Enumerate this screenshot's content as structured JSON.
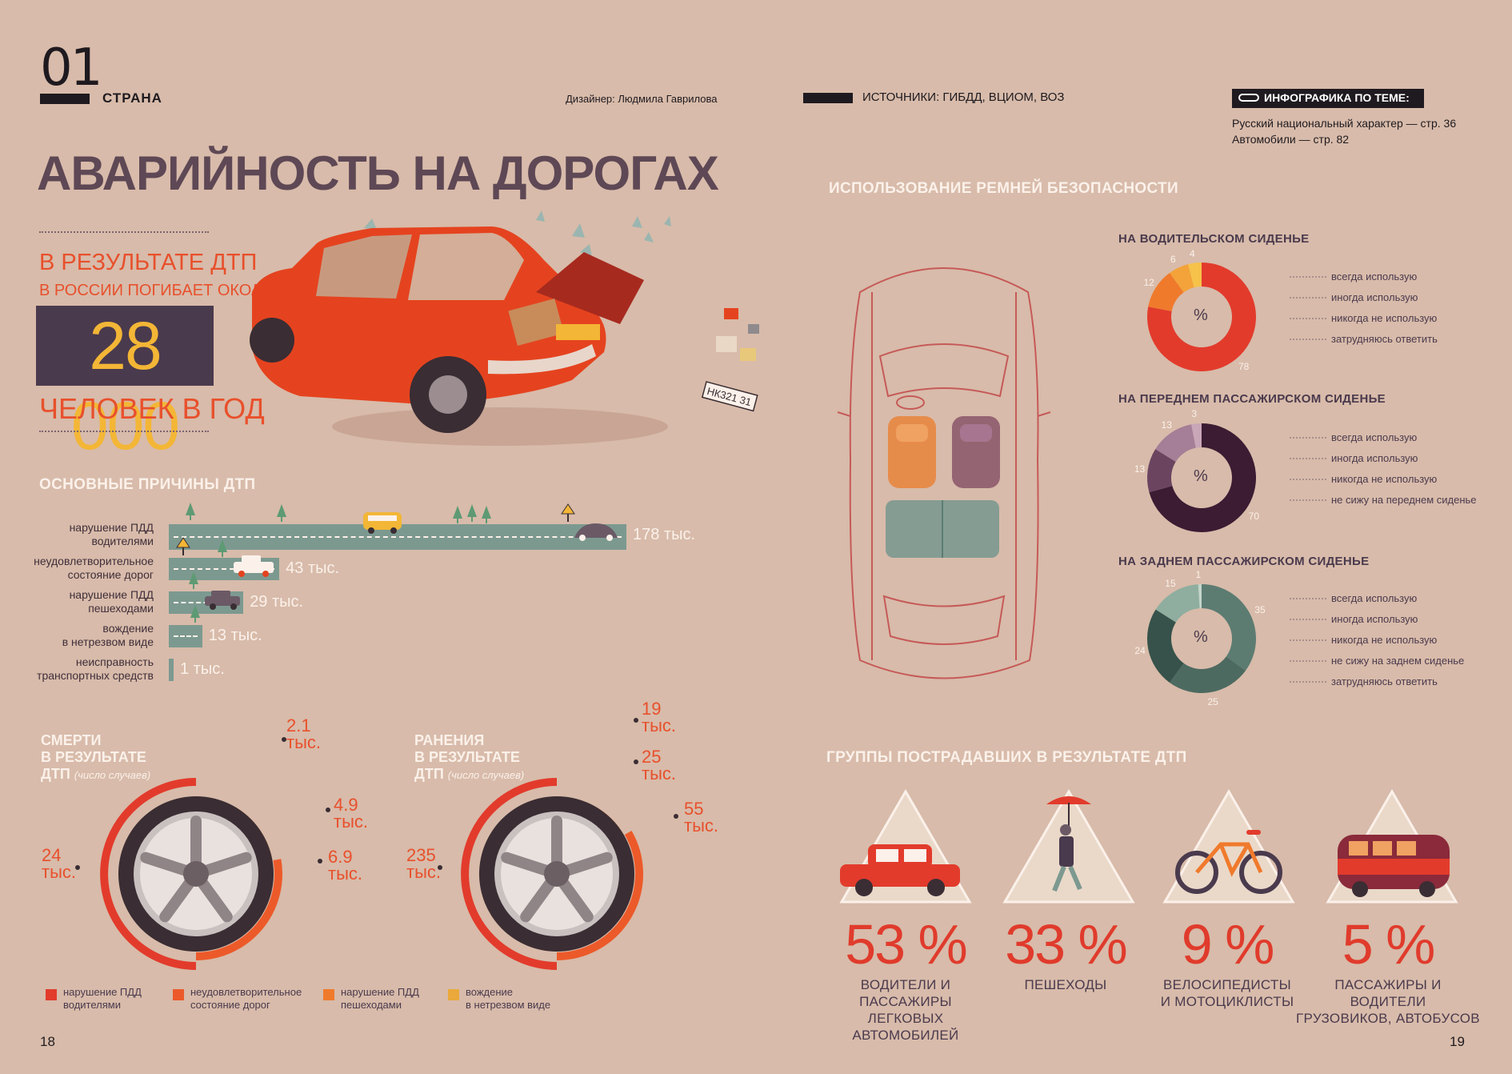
{
  "header": {
    "issue_number": "01",
    "section": "СТРАНА",
    "designer": "Дизайнер: Людмила Гаврилова",
    "sources": "ИСТОЧНИКИ: ГИБДД, ВЦИОМ, ВОЗ",
    "related_title": "ИНФОГРАФИКА ПО ТЕМЕ:",
    "related_items": [
      "Русский национальный характер — стр. 36",
      "Автомобили — стр. 82"
    ]
  },
  "title": "АВАРИЙНОСТЬ НА ДОРОГАХ",
  "headline_stat": {
    "line1": "В РЕЗУЛЬТАТЕ ДТП",
    "line2": "В РОССИИ ПОГИБАЕТ ОКОЛО",
    "number": "28 000",
    "line3": "ЧЕЛОВЕК В ГОД"
  },
  "plate_text": "НК321 31",
  "causes": {
    "title": "ОСНОВНЫЕ ПРИЧИНЫ ДТП",
    "items": [
      {
        "label1": "нарушение ПДД",
        "label2": "водителями",
        "value": 178,
        "value_label": "178 тыс."
      },
      {
        "label1": "неудовлетворительное",
        "label2": "состояние дорог",
        "value": 43,
        "value_label": "43 тыс."
      },
      {
        "label1": "нарушение ПДД",
        "label2": "пешеходами",
        "value": 29,
        "value_label": "29 тыс."
      },
      {
        "label1": "вождение",
        "label2": "в нетрезвом виде",
        "value": 13,
        "value_label": "13 тыс."
      },
      {
        "label1": "неисправность",
        "label2": "транспортных средств",
        "value": 1,
        "value_label": "1 тыс."
      }
    ]
  },
  "deaths": {
    "title_lines": [
      "СМЕРТИ",
      "В РЕЗУЛЬТАТЕ",
      "ДТП"
    ],
    "note": "(число случаев)",
    "values": [
      {
        "value": 24,
        "label1": "24",
        "label2": "тыс."
      },
      {
        "value": 6.9,
        "label1": "6.9",
        "label2": "тыс."
      },
      {
        "value": 4.9,
        "label1": "4.9",
        "label2": "тыс."
      },
      {
        "value": 2.1,
        "label1": "2.1",
        "label2": "тыс."
      }
    ]
  },
  "injuries": {
    "title_lines": [
      "РАНЕНИЯ",
      "В РЕЗУЛЬТАТЕ",
      "ДТП"
    ],
    "note": "(число случаев)",
    "values": [
      {
        "value": 235,
        "label1": "235",
        "label2": "тыс."
      },
      {
        "value": 55,
        "label1": "55",
        "label2": "тыс."
      },
      {
        "value": 25,
        "label1": "25",
        "label2": "тыс."
      },
      {
        "value": 19,
        "label1": "19",
        "label2": "тыс."
      }
    ]
  },
  "wheel_legend": [
    {
      "color": "#e23b2c",
      "line1": "нарушение ПДД",
      "line2": "водителями"
    },
    {
      "color": "#ec5a2a",
      "line1": "неудовлетворительное",
      "line2": "состояние дорог"
    },
    {
      "color": "#f07a2c",
      "line1": "нарушение ПДД",
      "line2": "пешеходами"
    },
    {
      "color": "#eaa93a",
      "line1": "вождение",
      "line2": "в нетрезвом виде"
    }
  ],
  "seatbelts": {
    "title": "ИСПОЛЬЗОВАНИЕ РЕМНЕЙ БЕЗОПАСНОСТИ",
    "center": "%",
    "charts": [
      {
        "title": "НА ВОДИТЕЛЬСКОМ СИДЕНЬЕ",
        "slices": [
          {
            "value": 78,
            "label": "всегда использую",
            "color": "#e23b2c"
          },
          {
            "value": 12,
            "label": "иногда использую",
            "color": "#f07a2c"
          },
          {
            "value": 6,
            "label": "никогда не использую",
            "color": "#f3a33a"
          },
          {
            "value": 4,
            "label": "затрудняюсь ответить",
            "color": "#f6c24a"
          }
        ]
      },
      {
        "title": "НА ПЕРЕДНЕМ ПАССАЖИРСКОМ СИДЕНЬЕ",
        "slices": [
          {
            "value": 70,
            "label": "всегда использую",
            "color": "#3b1c33"
          },
          {
            "value": 13,
            "label": "иногда использую",
            "color": "#6b4560"
          },
          {
            "value": 13,
            "label": "никогда не использую",
            "color": "#a57e97"
          },
          {
            "value": 3,
            "label": "не сижу на переднем сиденье",
            "color": "#c9a6b8"
          }
        ]
      },
      {
        "title": "НА ЗАДНЕМ ПАССАЖИРСКОМ СИДЕНЬЕ",
        "slices": [
          {
            "value": 35,
            "label": "всегда использую",
            "color": "#5c7c72"
          },
          {
            "value": 25,
            "label": "иногда использую",
            "color": "#4d6a61"
          },
          {
            "value": 24,
            "label": "никогда не использую",
            "color": "#36524a"
          },
          {
            "value": 15,
            "label": "не сижу на заднем сиденье",
            "color": "#8fae9f"
          },
          {
            "value": 1,
            "label": "затрудняюсь ответить",
            "color": "#c3d6cb"
          }
        ]
      }
    ]
  },
  "groups": {
    "title": "ГРУППЫ ПОСТРАДАВШИХ  В РЕЗУЛЬТАТЕ ДТП",
    "items": [
      {
        "value": 53,
        "pct": "53 %",
        "line1": "ВОДИТЕЛИ И ПАССАЖИРЫ",
        "line2": "ЛЕГКОВЫХ АВТОМОБИЛЕЙ"
      },
      {
        "value": 33,
        "pct": "33 %",
        "line1": "ПЕШЕХОДЫ",
        "line2": ""
      },
      {
        "value": 9,
        "pct": "9 %",
        "line1": "ВЕЛОСИПЕДИСТЫ",
        "line2": "И МОТОЦИКЛИСТЫ"
      },
      {
        "value": 5,
        "pct": "5 %",
        "line1": "ПАССАЖИРЫ И ВОДИТЕЛИ",
        "line2": "ГРУЗОВИКОВ, АВТОБУСОВ"
      }
    ]
  },
  "pages": {
    "left": "18",
    "right": "19"
  }
}
